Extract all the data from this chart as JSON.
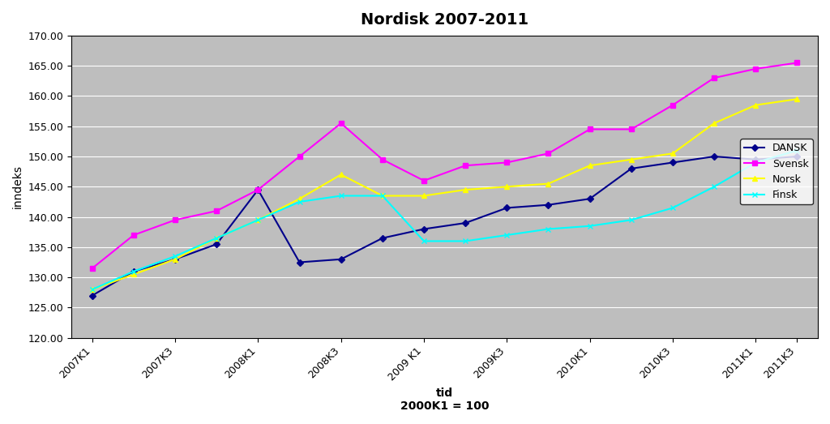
{
  "title": "Nordisk 2007-2011",
  "xlabel_line1": "tid",
  "xlabel_line2": "2000K1 = 100",
  "ylabel": "inndeks",
  "xlabels": [
    "2007K1",
    "2007K3",
    "2008K1",
    "2008K3",
    "2009 K1",
    "2009K3",
    "2010K1",
    "2010K3",
    "2011K1",
    "2011K3"
  ],
  "ylim": [
    120.0,
    170.0
  ],
  "yticks": [
    120.0,
    125.0,
    130.0,
    135.0,
    140.0,
    145.0,
    150.0,
    155.0,
    160.0,
    165.0,
    170.0
  ],
  "dansk": [
    127.0,
    131.0,
    133.0,
    135.5,
    144.5,
    132.5,
    133.0,
    136.5,
    138.0,
    139.0,
    141.5,
    142.0,
    143.0,
    148.0,
    149.0,
    150.0,
    149.5,
    150.0
  ],
  "svensk": [
    131.5,
    137.0,
    139.5,
    141.0,
    144.5,
    150.0,
    155.5,
    149.5,
    146.0,
    148.5,
    149.0,
    150.5,
    154.5,
    154.5,
    158.5,
    163.0,
    164.5,
    165.5
  ],
  "norsk": [
    128.0,
    130.5,
    133.0,
    136.5,
    139.5,
    143.0,
    147.0,
    143.5,
    143.5,
    144.5,
    145.0,
    145.5,
    148.5,
    149.5,
    150.5,
    155.5,
    158.5,
    159.5
  ],
  "finsk": [
    128.0,
    131.0,
    133.5,
    136.5,
    139.5,
    142.5,
    143.5,
    143.5,
    136.0,
    136.0,
    137.0,
    138.0,
    138.5,
    139.5,
    141.5,
    145.0,
    149.0,
    151.0
  ],
  "dansk_color": "#00008B",
  "svensk_color": "#FF00FF",
  "norsk_color": "#FFFF00",
  "finsk_color": "#00FFFF",
  "bg_color": "#BEBEBE",
  "grid_color": "#FFFFFF",
  "legend_labels": [
    "DANSK",
    "Svensk",
    "Norsk",
    "Finsk"
  ],
  "n_points": 18,
  "xtick_step": 2
}
